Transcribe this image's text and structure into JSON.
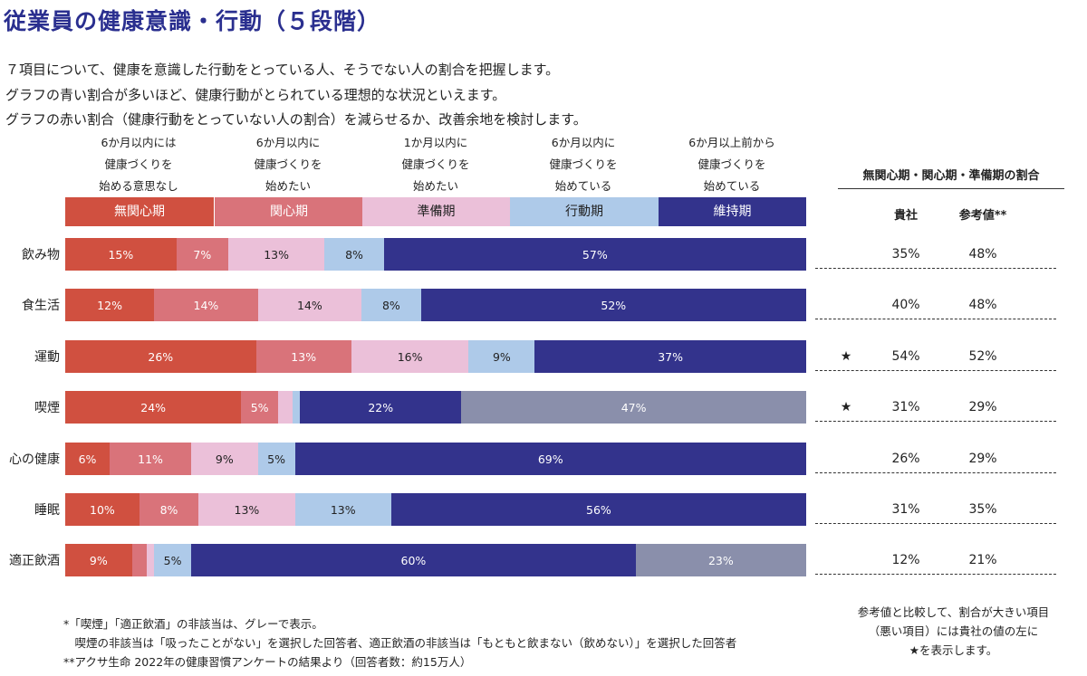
{
  "title": "従業員の健康意識・行動（５段階）",
  "intro": [
    "７項目について、健康を意識した行動をとっている人、そうでない人の割合を把握します。",
    "グラフの青い割合が多いほど、健康行動がとられている理想的な状況といえます。",
    "グラフの赤い割合（健康行動をとっていない人の割合）を減らせるか、改善余地を検討します。"
  ],
  "chart_data": {
    "type": "bar",
    "orientation": "horizontal",
    "stacked": true,
    "unit": "%",
    "stages": [
      {
        "name": "無関心期",
        "desc": [
          "6か月以内には",
          "健康づくりを",
          "始める意思なし"
        ],
        "color": "#d05040",
        "text_color": "#ffffff"
      },
      {
        "name": "関心期",
        "desc": [
          "6か月以内に",
          "健康づくりを",
          "始めたい"
        ],
        "color": "#d9737a",
        "text_color": "#ffffff"
      },
      {
        "name": "準備期",
        "desc": [
          "1か月以内に",
          "健康づくりを",
          "始めたい"
        ],
        "color": "#ebc0d9",
        "text_color": "#222222"
      },
      {
        "name": "行動期",
        "desc": [
          "6か月以内に",
          "健康づくりを",
          "始めている"
        ],
        "color": "#aecae9",
        "text_color": "#222222"
      },
      {
        "name": "維持期",
        "desc": [
          "6か月以上前から",
          "健康づくりを",
          "始めている"
        ],
        "color": "#33338c",
        "text_color": "#ffffff"
      }
    ],
    "not_applicable_color": "#8a8fab",
    "categories": [
      "飲み物",
      "食生活",
      "運動",
      "喫煙",
      "心の健康",
      "睡眠",
      "適正飲酒"
    ],
    "rows": [
      {
        "values": [
          15,
          7,
          13,
          8,
          57
        ],
        "labels": [
          "15%",
          "7%",
          "13%",
          "8%",
          "57%"
        ]
      },
      {
        "values": [
          12,
          14,
          14,
          8,
          52
        ],
        "labels": [
          "12%",
          "14%",
          "14%",
          "8%",
          "52%"
        ]
      },
      {
        "values": [
          26,
          13,
          16,
          9,
          37
        ],
        "labels": [
          "26%",
          "13%",
          "16%",
          "9%",
          "37%"
        ]
      },
      {
        "values": [
          24,
          5,
          2,
          1,
          22
        ],
        "labels": [
          "24%",
          "5%",
          "",
          "",
          "22%"
        ],
        "na": 47,
        "na_label": "47%"
      },
      {
        "values": [
          6,
          11,
          9,
          5,
          69
        ],
        "labels": [
          "6%",
          "11%",
          "9%",
          "5%",
          "69%"
        ]
      },
      {
        "values": [
          10,
          8,
          13,
          13,
          56
        ],
        "labels": [
          "10%",
          "8%",
          "13%",
          "13%",
          "56%"
        ]
      },
      {
        "values": [
          9,
          2,
          1,
          5,
          60
        ],
        "labels": [
          "9%",
          "",
          "",
          "5%",
          "60%"
        ],
        "na": 23,
        "na_label": "23%"
      }
    ]
  },
  "side": {
    "header": "無関心期・関心期・準備期の割合",
    "col_company": "貴社",
    "col_ref": "参考値**",
    "rows": [
      {
        "star": "",
        "company": "35%",
        "ref": "48%"
      },
      {
        "star": "",
        "company": "40%",
        "ref": "48%"
      },
      {
        "star": "★",
        "company": "54%",
        "ref": "52%"
      },
      {
        "star": "★",
        "company": "31%",
        "ref": "29%"
      },
      {
        "star": "",
        "company": "26%",
        "ref": "29%"
      },
      {
        "star": "",
        "company": "31%",
        "ref": "35%"
      },
      {
        "star": "",
        "company": "12%",
        "ref": "21%"
      }
    ],
    "note": [
      "参考値と比較して、割合が大きい項目",
      "（悪い項目）には貴社の値の左に",
      "★を表示します。"
    ]
  },
  "footnotes": [
    "*「喫煙」「適正飲酒」の非該当は、グレーで表示。",
    "　喫煙の非該当は「吸ったことがない」を選択した回答者、適正飲酒の非該当は「もともと飲まない（飲めない）」を選択した回答者",
    "**アクサ生命 2022年の健康習慣アンケートの結果より（回答者数：約15万人）"
  ]
}
